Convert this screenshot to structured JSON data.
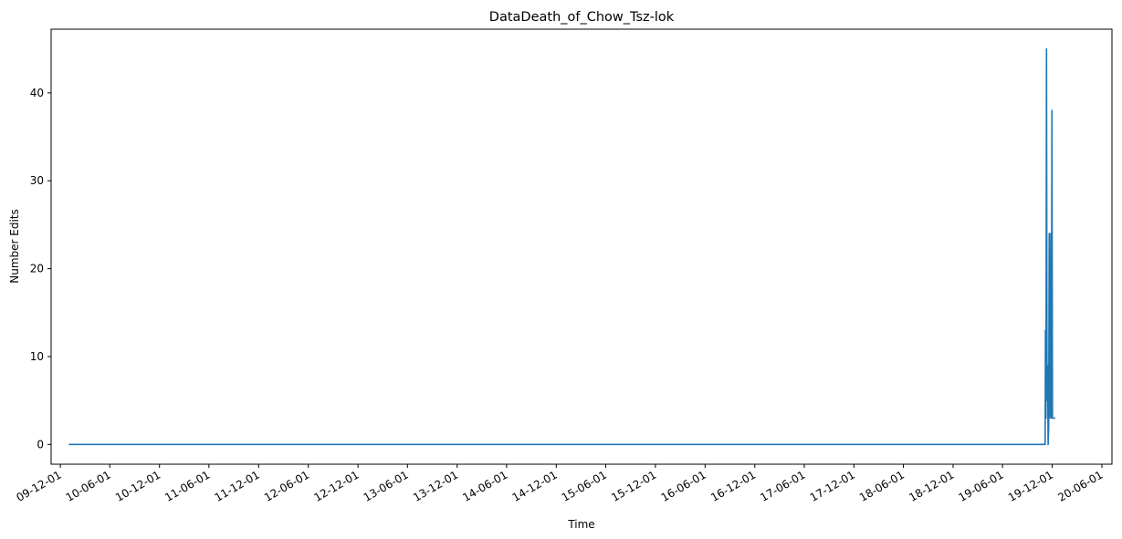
{
  "chart_data": {
    "type": "line",
    "title": "DataDeath_of_Chow_Tsz-lok",
    "xlabel": "Time",
    "ylabel": "Number Edits",
    "x_tick_labels": [
      "09-12-01",
      "10-06-01",
      "10-12-01",
      "11-06-01",
      "11-12-01",
      "12-06-01",
      "12-12-01",
      "13-06-01",
      "13-12-01",
      "14-06-01",
      "14-12-01",
      "15-06-01",
      "15-12-01",
      "16-06-01",
      "16-12-01",
      "17-06-01",
      "17-12-01",
      "18-06-01",
      "18-12-01",
      "19-06-01",
      "19-12-01",
      "20-06-01"
    ],
    "y_ticks": [
      0,
      10,
      20,
      30,
      40
    ],
    "ylim": [
      -2.25,
      47.25
    ],
    "xlim": [
      "2009-10-28",
      "2020-07-08"
    ],
    "grid": false,
    "legend": "none",
    "series": [
      {
        "color": "#1f77b4",
        "x": [
          "2010-01-01",
          "2019-11-05",
          "2019-11-06",
          "2019-11-08",
          "2019-11-10",
          "2019-11-12",
          "2019-11-14",
          "2019-11-16",
          "2019-11-18",
          "2019-11-20",
          "2019-11-22",
          "2019-11-24",
          "2019-11-26",
          "2019-11-28",
          "2019-11-30",
          "2019-12-02",
          "2019-12-04",
          "2019-12-06",
          "2019-12-08",
          "2019-12-10",
          "2019-12-12"
        ],
        "y": [
          0,
          0,
          13,
          3,
          45,
          5,
          9,
          0,
          2,
          24,
          3,
          5,
          24,
          3,
          38,
          3,
          3,
          3,
          3,
          3,
          3
        ]
      }
    ]
  }
}
